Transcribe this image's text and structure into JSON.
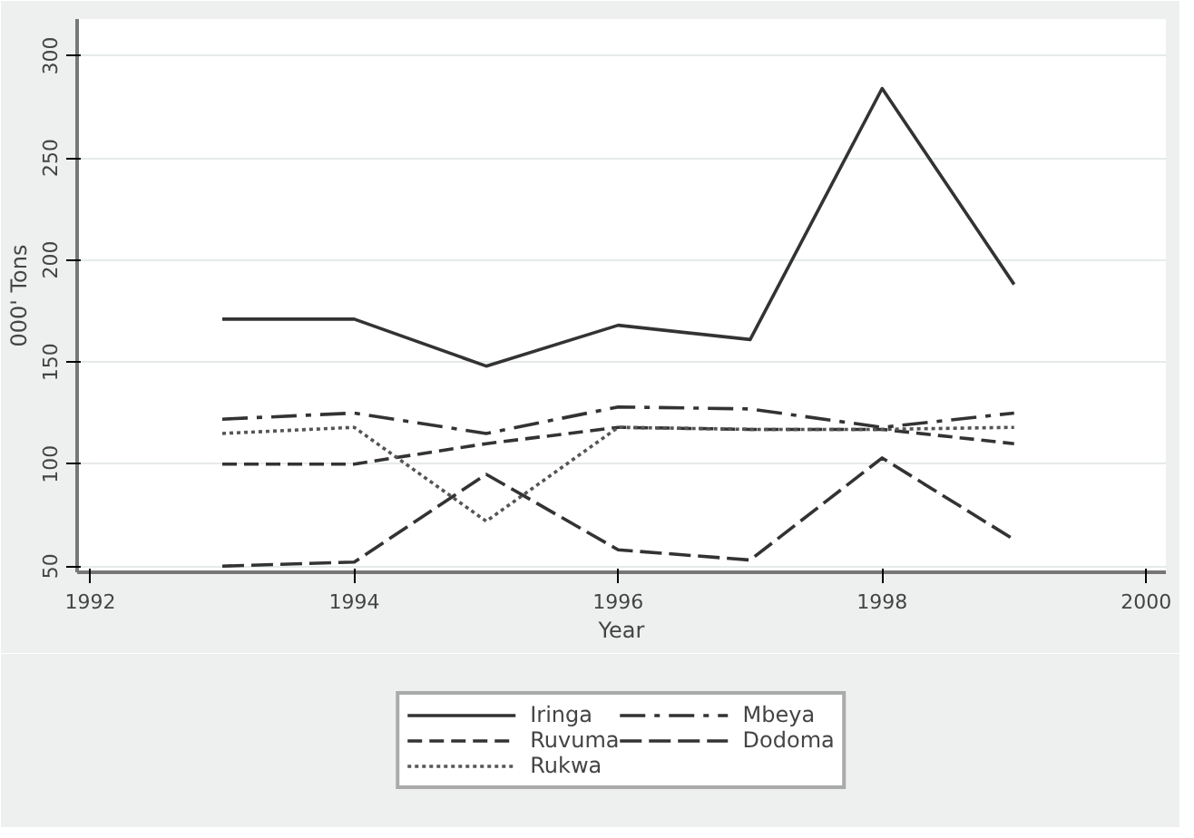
{
  "chart_data": {
    "type": "line",
    "xlabel": "Year",
    "ylabel": "000' Tons",
    "x": [
      1993,
      1994,
      1995,
      1996,
      1997,
      1998,
      1999
    ],
    "series": [
      {
        "name": "Iringa",
        "color": "#333333",
        "line_style": "solid",
        "values": [
          171,
          171,
          148,
          168,
          161,
          284,
          188
        ]
      },
      {
        "name": "Ruvuma",
        "color": "#333333",
        "line_style": "dashed",
        "values": [
          100,
          100,
          110,
          118,
          117,
          117,
          110
        ]
      },
      {
        "name": "Rukwa",
        "color": "#555555",
        "line_style": "dotted",
        "values": [
          115,
          118,
          72,
          118,
          117,
          117,
          118
        ]
      },
      {
        "name": "Mbeya",
        "color": "#333333",
        "line_style": "dashed",
        "values": [
          122,
          125,
          115,
          128,
          127,
          118,
          125
        ]
      },
      {
        "name": "Dodoma",
        "color": "#333333",
        "line_style": "dashed",
        "values": [
          50,
          52,
          95,
          58,
          53,
          103,
          63
        ]
      }
    ],
    "xlim": [
      1991.9,
      2000.15
    ],
    "ylim": [
      47,
      318
    ],
    "xticks": [
      1992,
      1994,
      1996,
      1998,
      2000
    ],
    "yticks": [
      50,
      100,
      150,
      200,
      250,
      300
    ],
    "grid": "y",
    "legend": "bottom",
    "marker": "none"
  }
}
